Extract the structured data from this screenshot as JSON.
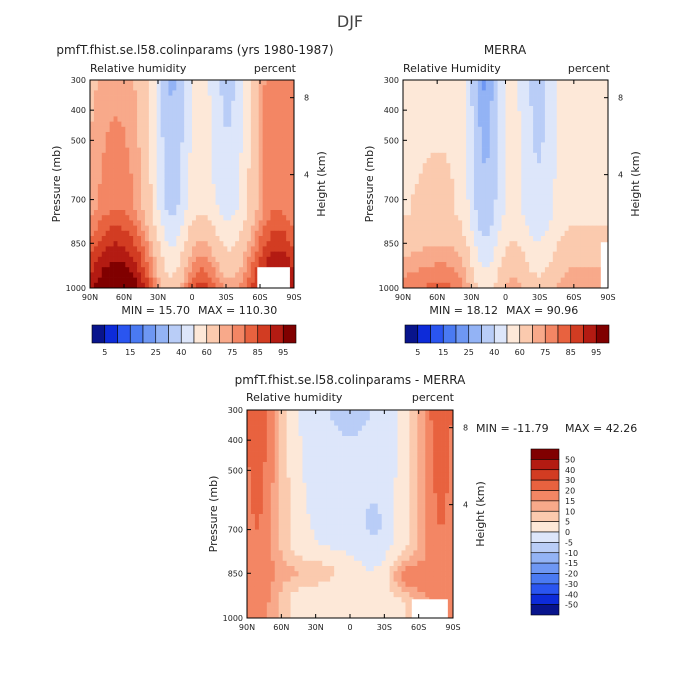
{
  "title": "DJF",
  "chart_data": [
    {
      "type": "heatmap",
      "title": "pmfT.fhist.se.l58.colinparams (yrs 1980-1987)",
      "left_label": "Relative humidity",
      "right_label": "percent",
      "ylabel": "Pressure (mb)",
      "y2label": "Height (km)",
      "x_ticks": [
        "90N",
        "60N",
        "30N",
        "0",
        "30S",
        "60S",
        "90S"
      ],
      "y_ticks": [
        "300",
        "400",
        "500",
        "700",
        "850",
        "1000"
      ],
      "y2_ticks": [
        "8",
        "4"
      ],
      "min_text": "MIN = 15.70",
      "max_text": "MAX = 110.30",
      "field": "model"
    },
    {
      "type": "heatmap",
      "title": "MERRA",
      "left_label": "Relative Humidity",
      "right_label": "percent",
      "ylabel": "Pressure (mb)",
      "y2label": "Height (km)",
      "x_ticks": [
        "90N",
        "60N",
        "30N",
        "0",
        "30S",
        "60S",
        "90S"
      ],
      "y_ticks": [
        "300",
        "400",
        "500",
        "700",
        "850",
        "1000"
      ],
      "y2_ticks": [
        "8",
        "4"
      ],
      "min_text": "MIN = 18.12",
      "max_text": "MAX = 90.96",
      "field": "merra"
    },
    {
      "type": "heatmap",
      "title": "pmfT.fhist.se.l58.colinparams - MERRA",
      "left_label": "Relative humidity",
      "right_label": "percent",
      "ylabel": "Pressure (mb)",
      "y2label": "Height (km)",
      "x_ticks": [
        "90N",
        "60N",
        "30N",
        "0",
        "30S",
        "60S",
        "90S"
      ],
      "y_ticks": [
        "300",
        "400",
        "500",
        "700",
        "850",
        "1000"
      ],
      "y2_ticks": [
        "8",
        "4"
      ],
      "min_text": "MIN = -11.79",
      "max_text": "MAX = 42.26",
      "field": "diff"
    }
  ],
  "colorbar_abs": {
    "labels": [
      "5",
      "15",
      "25",
      "40",
      "60",
      "75",
      "85",
      "95"
    ],
    "colors": [
      "#08148c",
      "#0d2bd9",
      "#2a55f0",
      "#4a7af2",
      "#6e97f3",
      "#93b3f5",
      "#b9cdf7",
      "#dde6fa",
      "#fde8d8",
      "#fbcaae",
      "#f8a98a",
      "#f38664",
      "#e8623f",
      "#d23c22",
      "#b31b12",
      "#800000"
    ]
  },
  "colorbar_diff": {
    "labels": [
      "50",
      "40",
      "30",
      "20",
      "15",
      "10",
      "5",
      "0",
      "-5",
      "-10",
      "-15",
      "-20",
      "-30",
      "-40",
      "-50"
    ],
    "colors": [
      "#800000",
      "#b31b12",
      "#d23c22",
      "#e8623f",
      "#f38664",
      "#f8a98a",
      "#fbcaae",
      "#fde8d8",
      "#dde6fa",
      "#b9cdf7",
      "#93b3f5",
      "#6e97f3",
      "#4a7af2",
      "#2a55f0",
      "#0d2bd9",
      "#08148c"
    ]
  }
}
